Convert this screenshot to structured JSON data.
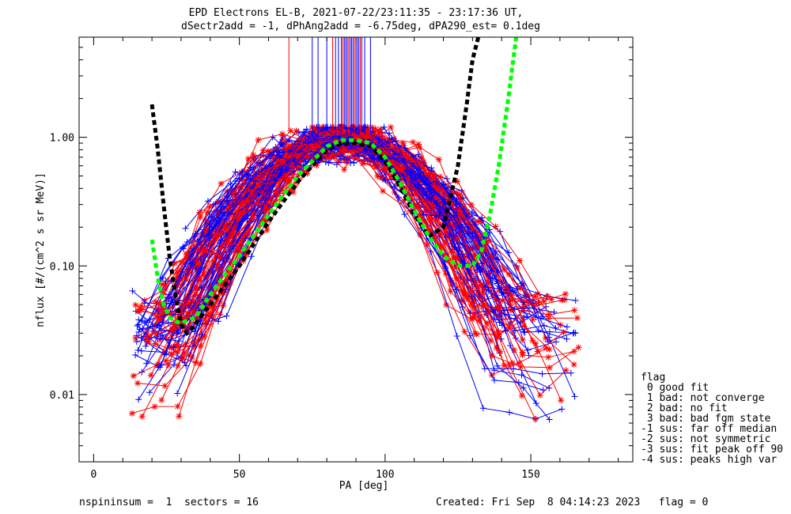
{
  "title": {
    "line1": "EPD Electrons EL-B, 2021-07-22/23:11:35 - 23:17:36 UT,",
    "line2": "dSectr2add = -1, dPhAng2add = -6.75deg, dPA290_est=   0.1deg"
  },
  "footer": {
    "left": "nspininsum =  1  sectors = 16",
    "right": "Created: Fri Sep  8 04:14:23 2023   flag = 0"
  },
  "legend": {
    "title": "flag",
    "items": [
      " 0 good fit",
      " 1 bad: not converge",
      " 2 bad: no fit",
      " 3 bad: bad fgm state",
      "-1 sus: far off median",
      "-2 sus: not symmetric",
      "-3 sus: fit peak off 90",
      "-4 sus: peaks high var"
    ]
  },
  "colors": {
    "red": "#ff0000",
    "blue": "#0000ff",
    "black": "#000000",
    "green": "#00ff00"
  },
  "chart_data": {
    "type": "line",
    "xlabel": "PA [deg]",
    "ylabel": "nflux [#/(cm^2 s sr MeV)]",
    "xlim": [
      -5,
      185
    ],
    "ylim": [
      0.003,
      6.0
    ],
    "yscale": "log",
    "xticks": [
      0,
      50,
      100,
      150
    ],
    "xticklabels": [
      "0",
      "50",
      "100",
      "150"
    ],
    "yticks": [
      0.01,
      0.1,
      1.0
    ],
    "yticklabels": [
      "0.01",
      "0.10",
      "1.00"
    ],
    "series": [
      {
        "color": "black",
        "style": "dashed-thick",
        "x": [
          20,
          22,
          24,
          26,
          28,
          30,
          32,
          34,
          40,
          50,
          60,
          70,
          80,
          85,
          90,
          95,
          100,
          105,
          110,
          115,
          120,
          125,
          128,
          130,
          132
        ],
        "y": [
          1.8,
          0.8,
          0.3,
          0.12,
          0.06,
          0.035,
          0.03,
          0.033,
          0.05,
          0.1,
          0.22,
          0.45,
          0.8,
          0.9,
          0.9,
          0.85,
          0.65,
          0.42,
          0.25,
          0.17,
          0.2,
          0.6,
          1.8,
          4.0,
          6.0
        ]
      },
      {
        "color": "green",
        "style": "dashed-thick",
        "x": [
          20,
          22,
          24,
          26,
          28,
          30,
          35,
          40,
          50,
          60,
          70,
          80,
          85,
          90,
          95,
          100,
          105,
          110,
          115,
          120,
          125,
          130,
          133,
          136,
          139,
          142,
          145
        ],
        "y": [
          0.16,
          0.08,
          0.05,
          0.04,
          0.037,
          0.036,
          0.04,
          0.06,
          0.12,
          0.25,
          0.5,
          0.85,
          0.95,
          0.95,
          0.9,
          0.7,
          0.45,
          0.27,
          0.17,
          0.12,
          0.1,
          0.1,
          0.13,
          0.25,
          0.6,
          1.8,
          6.0
        ]
      }
    ]
  }
}
